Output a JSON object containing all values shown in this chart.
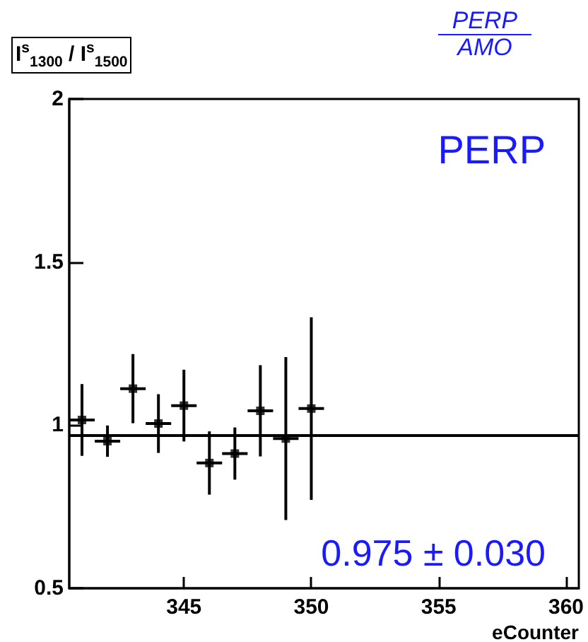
{
  "chart_data": {
    "type": "scatter",
    "title": "PERP",
    "subtitle": "AMO",
    "ylabel": "I$^{s}$$_{1300}$ / I$^{s}$$_{1500}$",
    "xlabel": "eCounter",
    "x": [
      341,
      342,
      343,
      344,
      345,
      346,
      347,
      348,
      349,
      350
    ],
    "values": [
      1.016,
      0.951,
      1.112,
      1.005,
      1.06,
      0.884,
      0.913,
      1.044,
      0.959,
      1.051
    ],
    "errors": [
      0.11,
      0.048,
      0.106,
      0.09,
      0.11,
      0.097,
      0.08,
      0.14,
      0.25,
      0.28
    ],
    "xerrors": [
      0.5,
      0.5,
      0.5,
      0.5,
      0.5,
      0.5,
      0.5,
      0.5,
      0.5,
      0.5
    ],
    "color": "#000000",
    "marker": "square",
    "grid": false,
    "xlim": [
      340.5,
      360.5
    ],
    "xticks": [
      345,
      350,
      355,
      360
    ],
    "ylim": [
      0.5,
      2
    ],
    "yticks": [
      0.5,
      1,
      1.5,
      2
    ],
    "ref_lines": [
      {
        "axis": "y",
        "value": 0.975,
        "color": "#000000"
      }
    ],
    "annotations": [
      "PERP",
      "0.975 ± 0.030"
    ]
  }
}
